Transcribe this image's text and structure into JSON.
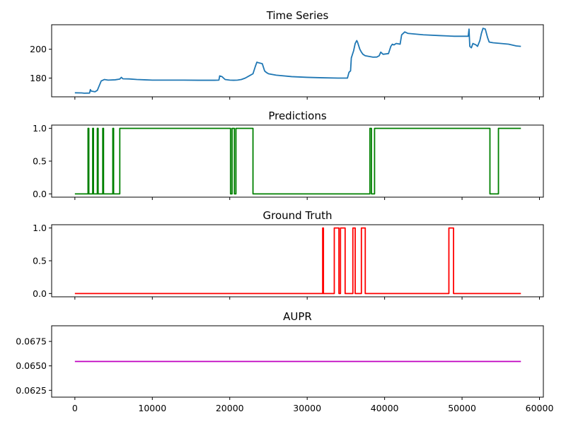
{
  "chart_data": [
    {
      "type": "line",
      "title": "Time Series",
      "xlim": [
        -3000,
        60500
      ],
      "ylim": [
        167,
        217
      ],
      "y_ticks": [
        {
          "value": 180,
          "label": "180"
        },
        {
          "value": 200,
          "label": "200"
        }
      ],
      "x_ticks": [
        0,
        10000,
        20000,
        30000,
        40000,
        50000,
        60000
      ],
      "show_x_tick_labels": false,
      "series": [
        {
          "color": "#1f77b4",
          "x": [
            0,
            900,
            1200,
            1900,
            2000,
            2100,
            2600,
            2900,
            3400,
            3800,
            4300,
            5200,
            5800,
            6000,
            6200,
            7000,
            8000,
            9000,
            10000,
            12000,
            14000,
            16000,
            18000,
            18600,
            18700,
            19000,
            19200,
            19400,
            20000,
            20500,
            21000,
            21500,
            22000,
            22500,
            23000,
            23300,
            23500,
            23800,
            24200,
            24500,
            24700,
            25000,
            26000,
            28000,
            30000,
            32000,
            34000,
            35200,
            35400,
            35600,
            35700,
            36000,
            36200,
            36400,
            36500,
            36800,
            37000,
            37200,
            37500,
            38000,
            38500,
            39000,
            39300,
            39500,
            39800,
            40500,
            40800,
            41000,
            41200,
            41500,
            42000,
            42200,
            42600,
            43000,
            45000,
            47000,
            49000,
            50800,
            50900,
            51000,
            51200,
            51400,
            51800,
            52000,
            52300,
            52500,
            52700,
            53000,
            53300,
            53500,
            54000,
            55000,
            56000,
            57000,
            57600
          ],
          "y": [
            169.8,
            169.7,
            169.5,
            169.6,
            172,
            171,
            170.5,
            171.5,
            178,
            179,
            178.6,
            178.8,
            179.3,
            180.5,
            179.5,
            179.4,
            179,
            178.8,
            178.6,
            178.6,
            178.6,
            178.5,
            178.5,
            178.6,
            181.5,
            181,
            180,
            179,
            178.6,
            178.5,
            178.6,
            179,
            180,
            181.5,
            183,
            188,
            191,
            190.5,
            190,
            185,
            184,
            183,
            182,
            181,
            180.5,
            180.2,
            180,
            180,
            184,
            185,
            194,
            199,
            204,
            206,
            205,
            200,
            198,
            196.5,
            195.5,
            195,
            194.5,
            194.6,
            195.5,
            198,
            196.5,
            197,
            202,
            203.5,
            203,
            204,
            203.5,
            210,
            212,
            211,
            210,
            209.5,
            209,
            209,
            214,
            202,
            201,
            204,
            203,
            202,
            206,
            211,
            214.5,
            214,
            208,
            205,
            204.5,
            204,
            203.5,
            202.3,
            202
          ]
        }
      ]
    },
    {
      "type": "line",
      "title": "Predictions",
      "xlim": [
        -3000,
        60500
      ],
      "ylim": [
        -0.05,
        1.05
      ],
      "y_ticks": [
        {
          "value": 0,
          "label": "0.0"
        },
        {
          "value": 0.5,
          "label": "0.5"
        },
        {
          "value": 1,
          "label": "1.0"
        }
      ],
      "x_ticks": [
        0,
        10000,
        20000,
        30000,
        40000,
        50000,
        60000
      ],
      "show_x_tick_labels": false,
      "step": true,
      "series": [
        {
          "color": "#008000",
          "x": [
            0,
            1700,
            1800,
            2300,
            2400,
            2900,
            3000,
            3600,
            3700,
            4900,
            5000,
            5800,
            20100,
            20300,
            20600,
            20800,
            23000,
            38100,
            38300,
            38700,
            53600,
            54700,
            57600
          ],
          "y": [
            0,
            1,
            0,
            1,
            0,
            1,
            0,
            1,
            0,
            1,
            0,
            1,
            0,
            1,
            0,
            1,
            0,
            1,
            0,
            1,
            0,
            1,
            1
          ]
        }
      ]
    },
    {
      "type": "line",
      "title": "Ground Truth",
      "xlim": [
        -3000,
        60500
      ],
      "ylim": [
        -0.05,
        1.05
      ],
      "y_ticks": [
        {
          "value": 0,
          "label": "0.0"
        },
        {
          "value": 0.5,
          "label": "0.5"
        },
        {
          "value": 1,
          "label": "1.0"
        }
      ],
      "x_ticks": [
        0,
        10000,
        20000,
        30000,
        40000,
        50000,
        60000
      ],
      "show_x_tick_labels": false,
      "step": true,
      "series": [
        {
          "color": "#ff0000",
          "x": [
            0,
            32000,
            32100,
            33500,
            34100,
            34300,
            34900,
            35900,
            36200,
            37000,
            37500,
            48300,
            48900,
            57600
          ],
          "y": [
            0,
            1,
            0,
            1,
            0,
            1,
            0,
            1,
            0,
            1,
            0,
            1,
            0,
            0
          ]
        }
      ]
    },
    {
      "type": "line",
      "title": "AUPR",
      "xlim": [
        -3000,
        60500
      ],
      "ylim": [
        0.0618,
        0.0691
      ],
      "y_ticks": [
        {
          "value": 0.0625,
          "label": "0.0625"
        },
        {
          "value": 0.065,
          "label": "0.0650"
        },
        {
          "value": 0.0675,
          "label": "0.0675"
        }
      ],
      "x_ticks": [
        0,
        10000,
        20000,
        30000,
        40000,
        50000,
        60000
      ],
      "show_x_tick_labels": true,
      "x_tick_labels": [
        "0",
        "10000",
        "20000",
        "30000",
        "40000",
        "50000",
        "60000"
      ],
      "series": [
        {
          "color": "#bf00bf",
          "x": [
            0,
            57600
          ],
          "y": [
            0.06545,
            0.06545
          ]
        }
      ]
    }
  ]
}
